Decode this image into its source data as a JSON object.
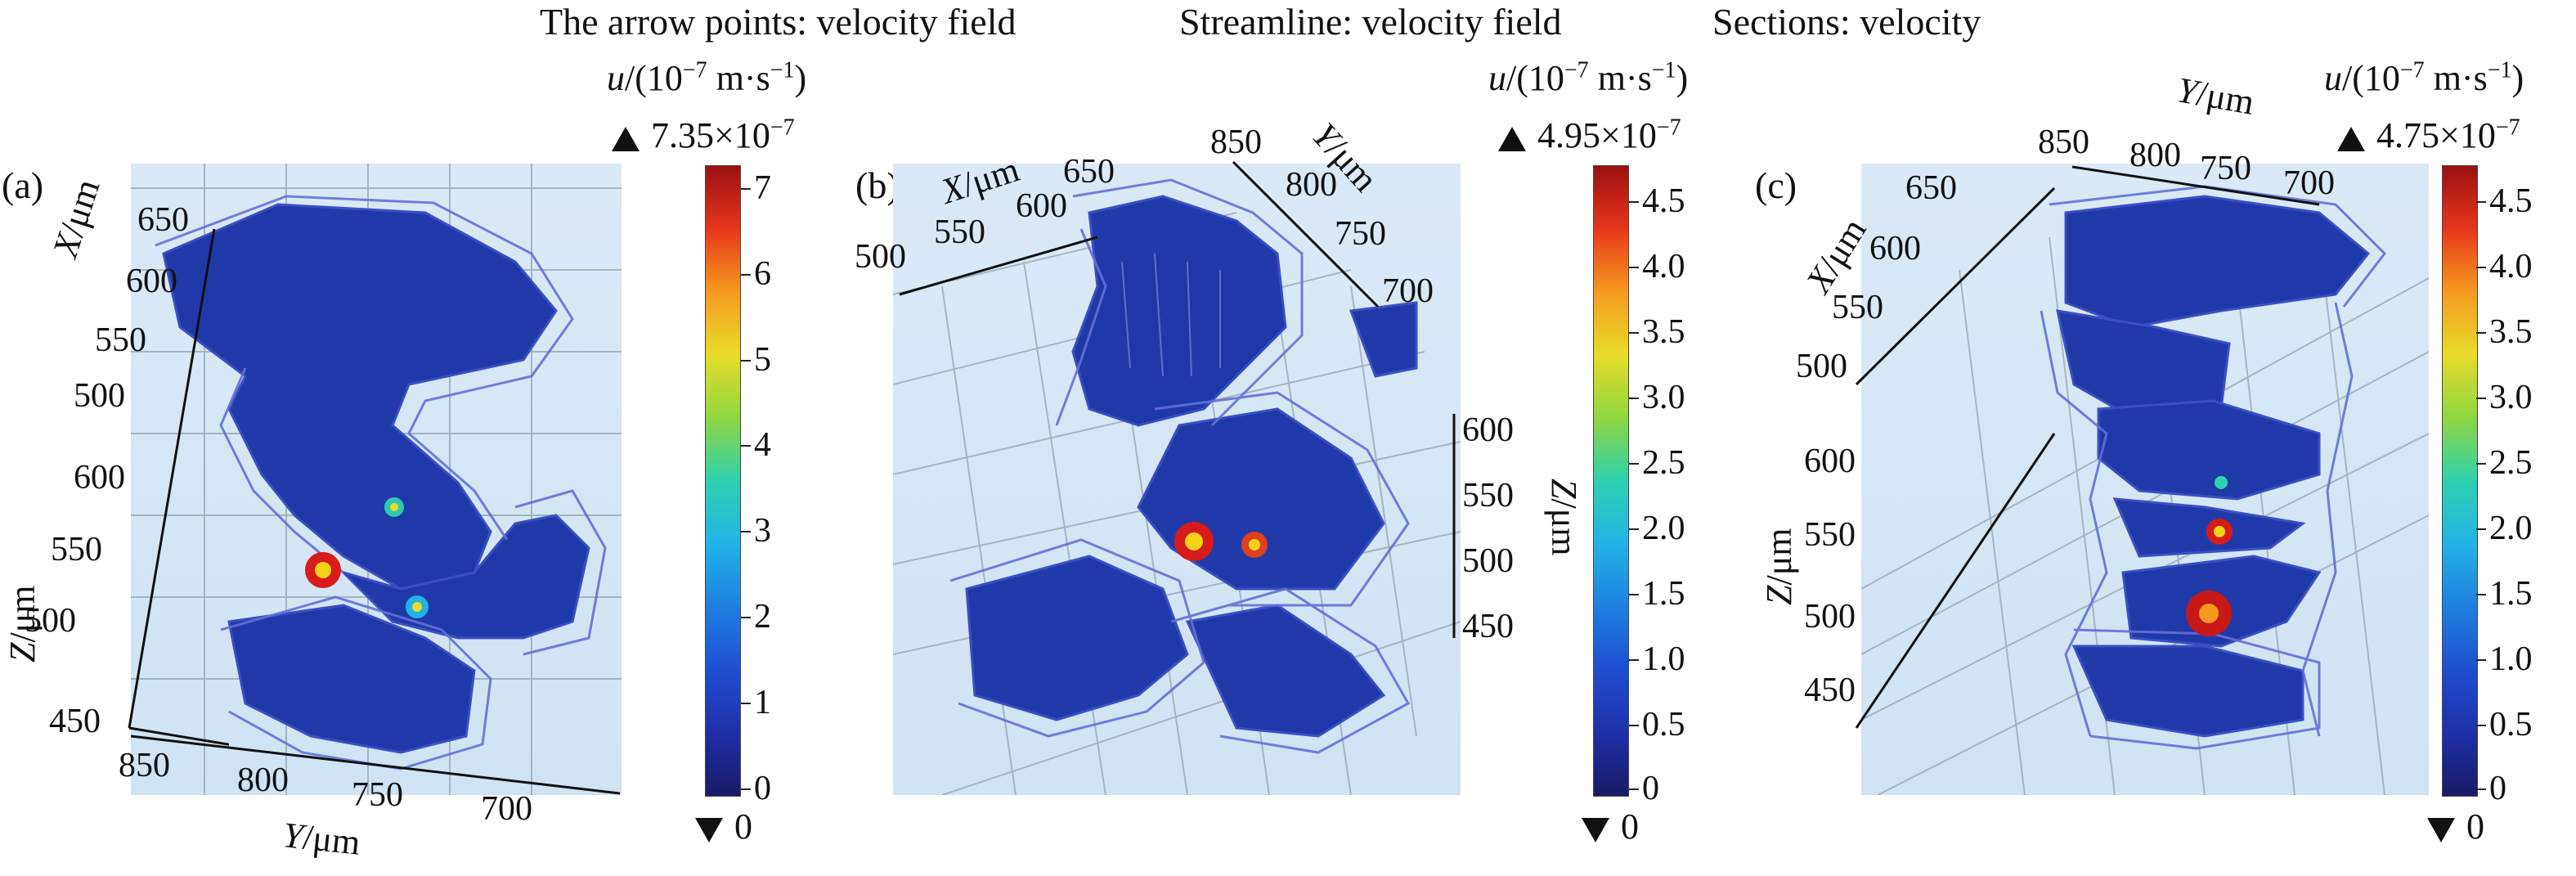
{
  "panels": [
    {
      "letter": "(a)",
      "title": "The arrow points: velocity field",
      "unit_var": "u",
      "unit_rest": "/(10",
      "unit_exp": "−7",
      "unit_tail": " m·s",
      "unit_tail_exp": "−1",
      "unit_close": ")",
      "max_label": "7.35×10",
      "max_exp": "−7",
      "min_label": "0",
      "colorbar_ticks": [
        "7",
        "6",
        "5",
        "4",
        "3",
        "2",
        "1",
        "0"
      ],
      "axis_x_label": "X/μm",
      "axis_x_ticks": [
        "650",
        "600",
        "550",
        "500"
      ],
      "axis_z_label": "Z/μm",
      "axis_z_ticks": [
        "600",
        "550",
        "500",
        "450"
      ],
      "axis_y_label": "Y/μm",
      "axis_y_ticks": [
        "850",
        "800",
        "750",
        "700"
      ]
    },
    {
      "letter": "(b)",
      "title": "Streamline: velocity field",
      "unit_var": "u",
      "unit_rest": "/(10",
      "unit_exp": "−7",
      "unit_tail": " m·s",
      "unit_tail_exp": "−1",
      "unit_close": ")",
      "max_label": "4.95×10",
      "max_exp": "−7",
      "min_label": "0",
      "colorbar_ticks": [
        "4.5",
        "4.0",
        "3.5",
        "3.0",
        "2.5",
        "2.0",
        "1.5",
        "1.0",
        "0.5",
        "0"
      ],
      "axis_x_label": "X/μm",
      "axis_x_ticks": [
        "500",
        "550",
        "600",
        "650"
      ],
      "axis_y_label": "Y/μm",
      "axis_y_ticks": [
        "850",
        "800",
        "750",
        "700"
      ],
      "axis_z_label": "Z/μm",
      "axis_z_ticks": [
        "600",
        "550",
        "500",
        "450"
      ]
    },
    {
      "letter": "(c)",
      "title": "Sections: velocity",
      "unit_var": "u",
      "unit_rest": "/(10",
      "unit_exp": "−7",
      "unit_tail": " m·s",
      "unit_tail_exp": "−1",
      "unit_close": ")",
      "max_label": "4.75×10",
      "max_exp": "−7",
      "min_label": "0",
      "colorbar_ticks": [
        "4.5",
        "4.0",
        "3.5",
        "3.0",
        "2.5",
        "2.0",
        "1.5",
        "1.0",
        "0.5",
        "0"
      ],
      "axis_x_label": "X/μm",
      "axis_x_ticks": [
        "650",
        "600",
        "550",
        "500"
      ],
      "axis_y_label": "Y/μm",
      "axis_y_ticks": [
        "850",
        "800",
        "750",
        "700"
      ],
      "axis_z_label": "Z/μm",
      "axis_z_ticks": [
        "600",
        "550",
        "500",
        "450"
      ]
    }
  ],
  "colors": {
    "surface": "#1f3aa8",
    "surface_dark": "#142a86",
    "streamline": "#5560c8",
    "background": "#d6e7f5",
    "hot": "#d81b1b"
  }
}
